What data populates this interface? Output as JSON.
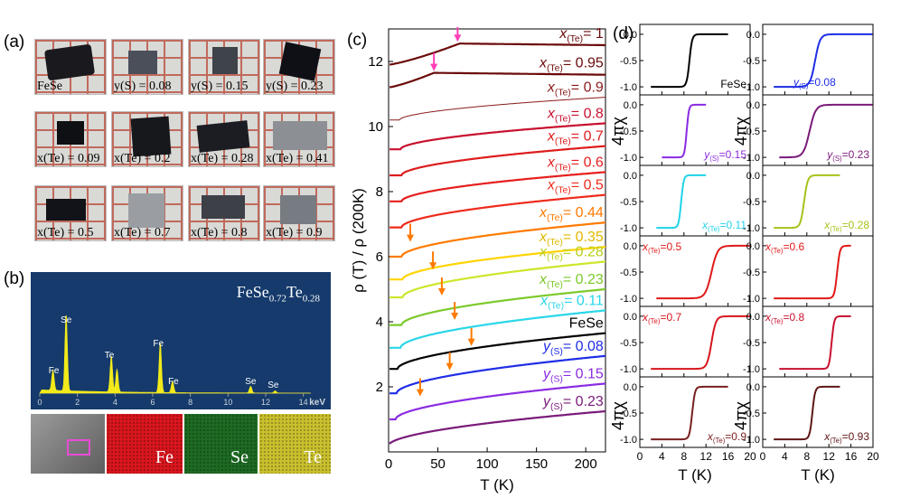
{
  "panel_a": {
    "label": "(a)",
    "samples": [
      {
        "caption": "FeSe",
        "sample_color": "#1a1a1e"
      },
      {
        "caption": "y(S) = 0.08",
        "sample_color": "#4a4f5a"
      },
      {
        "caption": "y(S) = 0.15",
        "sample_color": "#3f434a"
      },
      {
        "caption": "y(S) = 0.23",
        "sample_color": "#0f1016"
      },
      {
        "caption": "x(Te) = 0.09",
        "sample_color": "#0e1014"
      },
      {
        "caption": "x(Te) = 0.2",
        "sample_color": "#16181c"
      },
      {
        "caption": "x(Te) = 0.28",
        "sample_color": "#1b1d22"
      },
      {
        "caption": "x(Te) = 0.41",
        "sample_color": "#8c9094"
      },
      {
        "caption": "x(Te) = 0.5",
        "sample_color": "#111318"
      },
      {
        "caption": "x(Te) = 0.7",
        "sample_color": "#9a9ea3"
      },
      {
        "caption": "x(Te) = 0.8",
        "sample_color": "#3d4047"
      },
      {
        "caption": "x(Te) = 0.9",
        "sample_color": "#777b82"
      }
    ]
  },
  "panel_b": {
    "label": "(b)",
    "formula": "FeSe0.72Te0.28",
    "formula_main": "FeSe",
    "formula_sub1": "0.72",
    "formula_te": "Te",
    "formula_sub2": "0.28",
    "axis_unit": "keV",
    "ticks": [
      "0",
      "2",
      "4",
      "6",
      "8",
      "10",
      "12",
      "14"
    ],
    "maps": [
      {
        "label": "",
        "color": "#7d7d7d"
      },
      {
        "label": "Fe",
        "color": "#d8161d"
      },
      {
        "label": "Se",
        "color": "#1d6b22"
      },
      {
        "label": "Te",
        "color": "#c9c02e"
      }
    ],
    "peak_labels": [
      "Fe",
      "Se",
      "Te",
      "Fe",
      "Fe",
      "Se",
      "Se"
    ]
  },
  "chart_data": [
    {
      "panel": "(c)",
      "type": "line",
      "xlabel": "T (K)",
      "ylabel": "ρ (T) / ρ (200K)",
      "xlim": [
        0,
        220
      ],
      "ylim": [
        0,
        13
      ],
      "xticks": [
        0,
        50,
        100,
        150,
        200
      ],
      "yticks": [
        2,
        4,
        6,
        8,
        10,
        12
      ],
      "series": [
        {
          "name": "x(Te) = 1",
          "var": "x",
          "sub": "(Te)",
          "val": "= 1",
          "color": "#6b0a0a",
          "tc": 0,
          "offset": 12.55,
          "base": 11.9,
          "bump": 72,
          "slope": -0.0007
        },
        {
          "name": "x(Te) = 0.95",
          "var": "x",
          "sub": "(Te)",
          "val": "= 0.95",
          "color": "#6b0a0a",
          "tc": 0,
          "offset": 11.65,
          "base": 11.2,
          "bump": 46,
          "slope": -0.0003
        },
        {
          "name": "x(Te) = 0.9",
          "var": "x",
          "sub": "(Te)",
          "val": "= 0.9",
          "color": "#8b1a1a",
          "tc": 11,
          "offset": 10.9,
          "base": 10.2,
          "slope": 0.0002
        },
        {
          "name": "x(Te) = 0.8",
          "var": "x",
          "sub": "(Te)",
          "val": "= 0.8",
          "color": "#c8102e",
          "tc": 12,
          "offset": 10.1,
          "base": 9.3,
          "slope": 0.0004
        },
        {
          "name": "x(Te) = 0.7",
          "var": "x",
          "sub": "(Te)",
          "val": "= 0.7",
          "color": "#dd1c1c",
          "tc": 13,
          "offset": 9.4,
          "base": 8.5,
          "slope": 0.0006
        },
        {
          "name": "x(Te) = 0.6",
          "var": "x",
          "sub": "(Te)",
          "val": "= 0.6",
          "color": "#e61e1e",
          "tc": 13,
          "offset": 8.6,
          "base": 7.7,
          "slope": 0.0008
        },
        {
          "name": "x(Te) = 0.5",
          "var": "x",
          "sub": "(Te)",
          "val": "= 0.5",
          "color": "#ee2a1a",
          "tc": 13,
          "offset": 7.9,
          "base": 6.9,
          "slope": 0.001
        },
        {
          "name": "x(Te) = 0.44",
          "var": "x",
          "sub": "(Te)",
          "val": "= 0.44",
          "color": "#ff7a00",
          "tc": 13,
          "offset": 7.05,
          "base": 6.0,
          "slope": 0.0012
        },
        {
          "name": "x(Te) = 0.35",
          "var": "x",
          "sub": "(Te)",
          "val": "= 0.35",
          "color": "#ffd400",
          "tc": 14,
          "offset": 6.3,
          "base": 5.3,
          "slope": 0.0015
        },
        {
          "name": "x(Te) = 0.28",
          "var": "x",
          "sub": "(Te)",
          "val": "= 0.28",
          "color": "#cde62a",
          "tc": 14,
          "offset": 5.85,
          "base": 4.75,
          "slope": 0.0018
        },
        {
          "name": "x(Te) = 0.23",
          "var": "x",
          "sub": "(Te)",
          "val": "= 0.23",
          "color": "#7cc92a",
          "tc": 13,
          "offset": 5.0,
          "base": 3.9,
          "slope": 0.0025
        },
        {
          "name": "x(Te) = 0.11",
          "var": "x",
          "sub": "(Te)",
          "val": "= 0.11",
          "color": "#29d6e8",
          "tc": 12,
          "offset": 4.35,
          "base": 3.2,
          "slope": 0.003
        },
        {
          "name": "FeSe",
          "var": "",
          "sub": "",
          "val": "FeSe",
          "color": "#000000",
          "tc": 9,
          "offset": 3.65,
          "base": 2.55,
          "slope": 0.0045
        },
        {
          "name": "y(S) = 0.08",
          "var": "y",
          "sub": "(S)",
          "val": "= 0.08",
          "color": "#1f2de6",
          "tc": 8,
          "offset": 2.95,
          "base": 1.8,
          "slope": 0.005
        },
        {
          "name": "y(S) = 0.15",
          "var": "y",
          "sub": "(S)",
          "val": "= 0.15",
          "color": "#8a2be2",
          "tc": 7,
          "offset": 2.1,
          "base": 1.0,
          "slope": 0.0055
        },
        {
          "name": "y(S) = 0.23",
          "var": "y",
          "sub": "(S)",
          "val": "= 0.23",
          "color": "#7a1a7a",
          "tc": 0,
          "offset": 1.25,
          "base": 0.2,
          "slope": 0.006
        }
      ],
      "arrows": [
        {
          "x": 70,
          "y": 12.55,
          "color": "#ff3eb5"
        },
        {
          "x": 46,
          "y": 11.65,
          "color": "#ff3eb5"
        },
        {
          "x": 22,
          "y": 6.4,
          "color": "#ff7a00"
        },
        {
          "x": 45,
          "y": 5.55,
          "color": "#ff7a00"
        },
        {
          "x": 54,
          "y": 4.75,
          "color": "#ff7a00"
        },
        {
          "x": 67,
          "y": 4.0,
          "color": "#ff7a00"
        },
        {
          "x": 84,
          "y": 3.2,
          "color": "#ff7a00"
        },
        {
          "x": 62,
          "y": 2.45,
          "color": "#ff7a00"
        },
        {
          "x": 32,
          "y": 1.65,
          "color": "#ff7a00"
        }
      ]
    },
    {
      "panel": "(d)",
      "type": "line",
      "ylabel": "4πχ",
      "xlabel": "T (K)",
      "xlim": [
        0,
        20
      ],
      "ylim": [
        -1.1,
        0.1
      ],
      "xticks": [
        0,
        4,
        8,
        12,
        16,
        20
      ],
      "yticks": [
        "0.0",
        "-0.5",
        "-1.0"
      ],
      "panels": [
        {
          "var": "",
          "sub": "",
          "val": "FeSe",
          "color": "#000000",
          "tc": 9,
          "width": 1.0,
          "lpos": "br",
          "xmax": 16,
          "tmin": 2
        },
        {
          "var": "y",
          "sub": "(S)",
          "val": "=0.08",
          "color": "#1f2de6",
          "tc": 9.5,
          "width": 1.8,
          "lpos": "bl",
          "xmax": 20,
          "tmin": 2
        },
        {
          "var": "y",
          "sub": "(S)",
          "val": "=0.15",
          "color": "#8a2be2",
          "tc": 8.5,
          "width": 0.8,
          "lpos": "br",
          "xmax": 12,
          "tmin": 4
        },
        {
          "var": "y",
          "sub": "(S)",
          "val": "=0.23",
          "color": "#7a1a7a",
          "tc": 8.5,
          "width": 2.2,
          "lpos": "br",
          "xmax": 20,
          "tmin": 3
        },
        {
          "var": "x",
          "sub": "(Te)",
          "val": "=0.11",
          "color": "#1fd3e8",
          "tc": 7.5,
          "width": 0.9,
          "lpos": "br",
          "xmax": 12,
          "tmin": 3
        },
        {
          "var": "x",
          "sub": "(Te)",
          "val": "=0.28",
          "color": "#a7c21a",
          "tc": 7.5,
          "width": 1.3,
          "lpos": "br",
          "xmax": 14,
          "tmin": 2
        },
        {
          "var": "x",
          "sub": "(Te)",
          "val": "=0.5",
          "color": "#e01a1a",
          "tc": 13,
          "width": 2.2,
          "lpos": "tl",
          "xmax": 20,
          "tmin": 3
        },
        {
          "var": "x",
          "sub": "(Te)",
          "val": "=0.6",
          "color": "#e01a1a",
          "tc": 13.5,
          "width": 1.0,
          "lpos": "tl",
          "xmax": 16,
          "tmin": 2
        },
        {
          "var": "x",
          "sub": "(Te)",
          "val": "=0.7",
          "color": "#d8161d",
          "tc": 13,
          "width": 1.6,
          "lpos": "tl",
          "xmax": 20,
          "tmin": 2
        },
        {
          "var": "x",
          "sub": "(Te)",
          "val": "=0.8",
          "color": "#c8102e",
          "tc": 12.5,
          "width": 0.9,
          "lpos": "tl",
          "xmax": 16,
          "tmin": 3
        },
        {
          "var": "x",
          "sub": "(Te)",
          "val": "=0.9",
          "color": "#7a1f1f",
          "tc": 9.5,
          "width": 1.0,
          "lpos": "br",
          "xmax": 16,
          "tmin": 2
        },
        {
          "var": "x",
          "sub": "(Te)",
          "val": "=0.93",
          "color": "#5e1515",
          "tc": 9,
          "width": 1.0,
          "lpos": "br",
          "xmax": 14,
          "tmin": 2
        }
      ]
    }
  ],
  "panel_c_label": "(c)",
  "panel_d_label": "(d)"
}
